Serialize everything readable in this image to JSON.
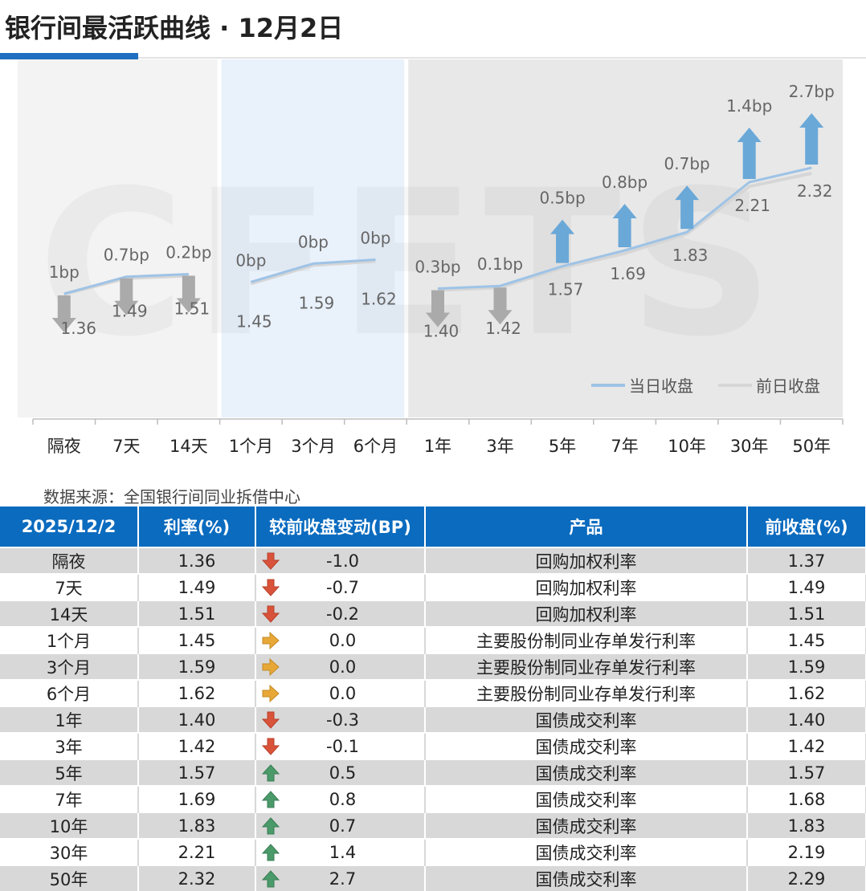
{
  "title": "银行间最活跃曲线 · 12月2日",
  "watermark": "CFETS",
  "source": "数据来源：全国银行间同业拆借中心",
  "colors": {
    "current_line": "#9ec3e6",
    "previous_line": "#d6d6d6",
    "up_arrow": "#6aa8d8",
    "down_arrow": "#aaaaaa",
    "panel_1": "#f3f3f3",
    "panel_2": "#e9f1fb",
    "panel_3": "#e8e8e8",
    "header_bg": "#0a6bbf",
    "table_up": "#4a9a6a",
    "table_down": "#d9533a",
    "table_flat": "#e8a838"
  },
  "chart_data": {
    "type": "line",
    "categories": [
      "隔夜",
      "7天",
      "14天",
      "1个月",
      "3个月",
      "6个月",
      "1年",
      "3年",
      "5年",
      "7年",
      "10年",
      "30年",
      "50年"
    ],
    "groups": [
      [
        0,
        2
      ],
      [
        3,
        5
      ],
      [
        6,
        12
      ]
    ],
    "series": [
      {
        "name": "当日收盘",
        "values": [
          1.36,
          1.49,
          1.51,
          1.45,
          1.59,
          1.62,
          1.4,
          1.42,
          1.57,
          1.69,
          1.83,
          2.21,
          2.32
        ]
      },
      {
        "name": "前日收盘",
        "values": [
          1.37,
          1.49,
          1.51,
          1.45,
          1.59,
          1.62,
          1.4,
          1.42,
          1.57,
          1.68,
          1.83,
          2.19,
          2.29
        ]
      }
    ],
    "changes_bp": [
      -1.0,
      -0.7,
      -0.2,
      0.0,
      0.0,
      0.0,
      -0.3,
      -0.1,
      0.5,
      0.8,
      0.7,
      1.4,
      2.7
    ],
    "change_labels": [
      "1bp",
      "0.7bp",
      "0.2bp",
      "0bp",
      "0bp",
      "0bp",
      "0.3bp",
      "0.1bp",
      "0.5bp",
      "0.8bp",
      "0.7bp",
      "1.4bp",
      "2.7bp"
    ],
    "value_labels": [
      "1.36",
      "1.49",
      "1.51",
      "1.45",
      "1.59",
      "1.62",
      "1.40",
      "1.42",
      "1.57",
      "1.69",
      "1.83",
      "2.21",
      "2.32"
    ],
    "legend_position": "bottom-right",
    "grid": false
  },
  "table": {
    "headers": [
      "2025/12/2",
      "利率(%)",
      "较前收盘变动(BP)",
      "产品",
      "前收盘(%)"
    ],
    "rows": [
      {
        "tenor": "隔夜",
        "rate": "1.36",
        "dir": "down",
        "change": "-1.0",
        "product": "回购加权利率",
        "prev": "1.37"
      },
      {
        "tenor": "7天",
        "rate": "1.49",
        "dir": "down",
        "change": "-0.7",
        "product": "回购加权利率",
        "prev": "1.49"
      },
      {
        "tenor": "14天",
        "rate": "1.51",
        "dir": "down",
        "change": "-0.2",
        "product": "回购加权利率",
        "prev": "1.51"
      },
      {
        "tenor": "1个月",
        "rate": "1.45",
        "dir": "flat",
        "change": "0.0",
        "product": "主要股份制同业存单发行利率",
        "prev": "1.45"
      },
      {
        "tenor": "3个月",
        "rate": "1.59",
        "dir": "flat",
        "change": "0.0",
        "product": "主要股份制同业存单发行利率",
        "prev": "1.59"
      },
      {
        "tenor": "6个月",
        "rate": "1.62",
        "dir": "flat",
        "change": "0.0",
        "product": "主要股份制同业存单发行利率",
        "prev": "1.62"
      },
      {
        "tenor": "1年",
        "rate": "1.40",
        "dir": "down",
        "change": "-0.3",
        "product": "国债成交利率",
        "prev": "1.40"
      },
      {
        "tenor": "3年",
        "rate": "1.42",
        "dir": "down",
        "change": "-0.1",
        "product": "国债成交利率",
        "prev": "1.42"
      },
      {
        "tenor": "5年",
        "rate": "1.57",
        "dir": "up",
        "change": "0.5",
        "product": "国债成交利率",
        "prev": "1.57"
      },
      {
        "tenor": "7年",
        "rate": "1.69",
        "dir": "up",
        "change": "0.8",
        "product": "国债成交利率",
        "prev": "1.68"
      },
      {
        "tenor": "10年",
        "rate": "1.83",
        "dir": "up",
        "change": "0.7",
        "product": "国债成交利率",
        "prev": "1.83"
      },
      {
        "tenor": "30年",
        "rate": "2.21",
        "dir": "up",
        "change": "1.4",
        "product": "国债成交利率",
        "prev": "2.19"
      },
      {
        "tenor": "50年",
        "rate": "2.32",
        "dir": "up",
        "change": "2.7",
        "product": "国债成交利率",
        "prev": "2.29"
      }
    ]
  }
}
